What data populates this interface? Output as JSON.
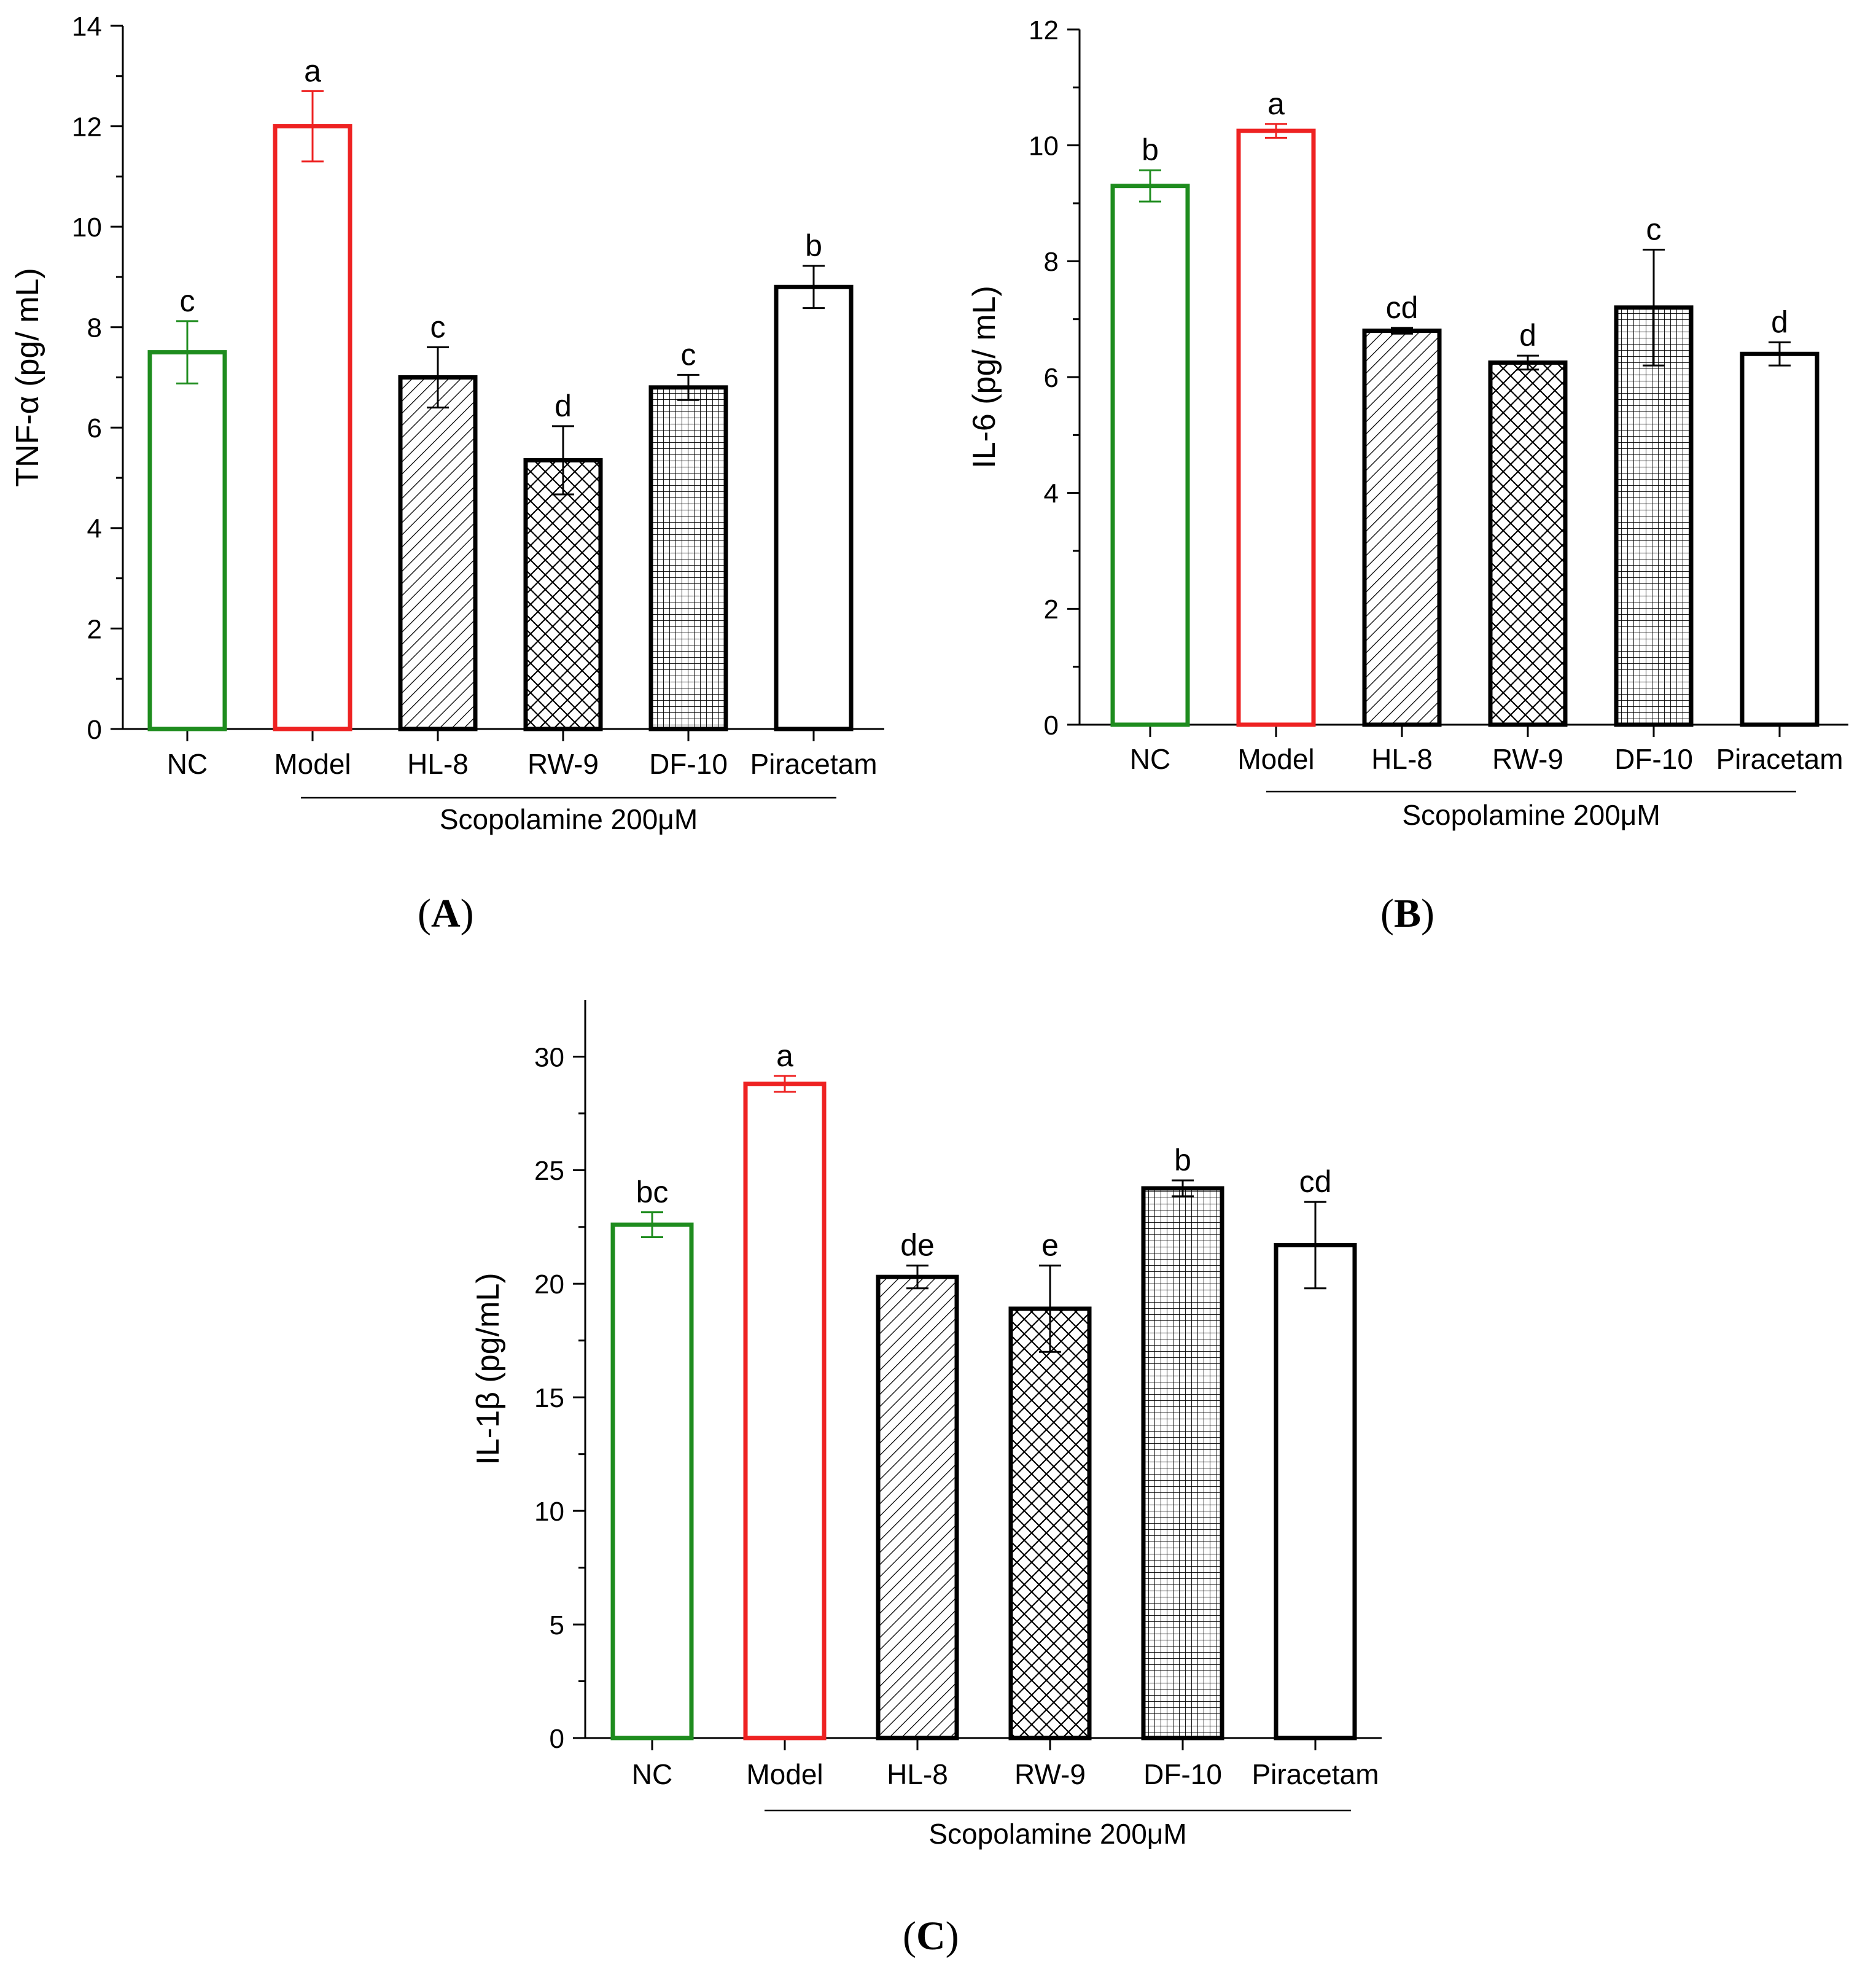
{
  "chart_data": [
    {
      "type": "bar",
      "panel": "A",
      "panel_label": "A",
      "ylabel": "TNF-α (pg/ mL)",
      "xlabel": "Scopolamine 200μM",
      "ylim": [
        0,
        14
      ],
      "yticks": [
        0,
        2,
        4,
        6,
        8,
        10,
        12,
        14
      ],
      "categories": [
        "NC",
        "Model",
        "HL-8",
        "RW-9",
        "DF-10",
        "Piracetam"
      ],
      "values": [
        7.5,
        12.0,
        7.0,
        5.35,
        6.8,
        8.8
      ],
      "errors": [
        0.62,
        0.7,
        0.6,
        0.68,
        0.25,
        0.42
      ],
      "letters": [
        "c",
        "a",
        "c",
        "d",
        "c",
        "b"
      ],
      "bar_colors": [
        "#1e8c1e",
        "#ee2222",
        "#000000",
        "#000000",
        "#000000",
        "#000000"
      ],
      "patterns": [
        "none",
        "none",
        "diag",
        "cross",
        "grid",
        "none"
      ]
    },
    {
      "type": "bar",
      "panel": "B",
      "panel_label": "B",
      "ylabel": "IL-6 (pg/ mL)",
      "xlabel": "Scopolamine 200μM",
      "ylim": [
        0,
        12
      ],
      "yticks": [
        0,
        2,
        4,
        6,
        8,
        10,
        12
      ],
      "categories": [
        "NC",
        "Model",
        "HL-8",
        "RW-9",
        "DF-10",
        "Piracetam"
      ],
      "values": [
        9.3,
        10.25,
        6.8,
        6.25,
        7.2,
        6.4
      ],
      "errors": [
        0.27,
        0.12,
        0.05,
        0.12,
        1.0,
        0.2
      ],
      "letters": [
        "b",
        "a",
        "cd",
        "d",
        "c",
        "d"
      ],
      "bar_colors": [
        "#1e8c1e",
        "#ee2222",
        "#000000",
        "#000000",
        "#000000",
        "#000000"
      ],
      "patterns": [
        "none",
        "none",
        "diag",
        "cross",
        "grid",
        "none"
      ]
    },
    {
      "type": "bar",
      "panel": "C",
      "panel_label": "C",
      "ylabel": "IL-1β (pg/mL)",
      "xlabel": "Scopolamine 200μM",
      "ylim": [
        0,
        32.5
      ],
      "yticks": [
        0,
        5,
        10,
        15,
        20,
        25,
        30
      ],
      "categories": [
        "NC",
        "Model",
        "HL-8",
        "RW-9",
        "DF-10",
        "Piracetam"
      ],
      "values": [
        22.6,
        28.8,
        20.3,
        18.9,
        24.2,
        21.7
      ],
      "errors": [
        0.55,
        0.35,
        0.5,
        1.9,
        0.35,
        1.9
      ],
      "letters": [
        "bc",
        "a",
        "de",
        "e",
        "b",
        "cd"
      ],
      "bar_colors": [
        "#1e8c1e",
        "#ee2222",
        "#000000",
        "#000000",
        "#000000",
        "#000000"
      ],
      "patterns": [
        "none",
        "none",
        "diag",
        "cross",
        "grid",
        "none"
      ]
    }
  ]
}
